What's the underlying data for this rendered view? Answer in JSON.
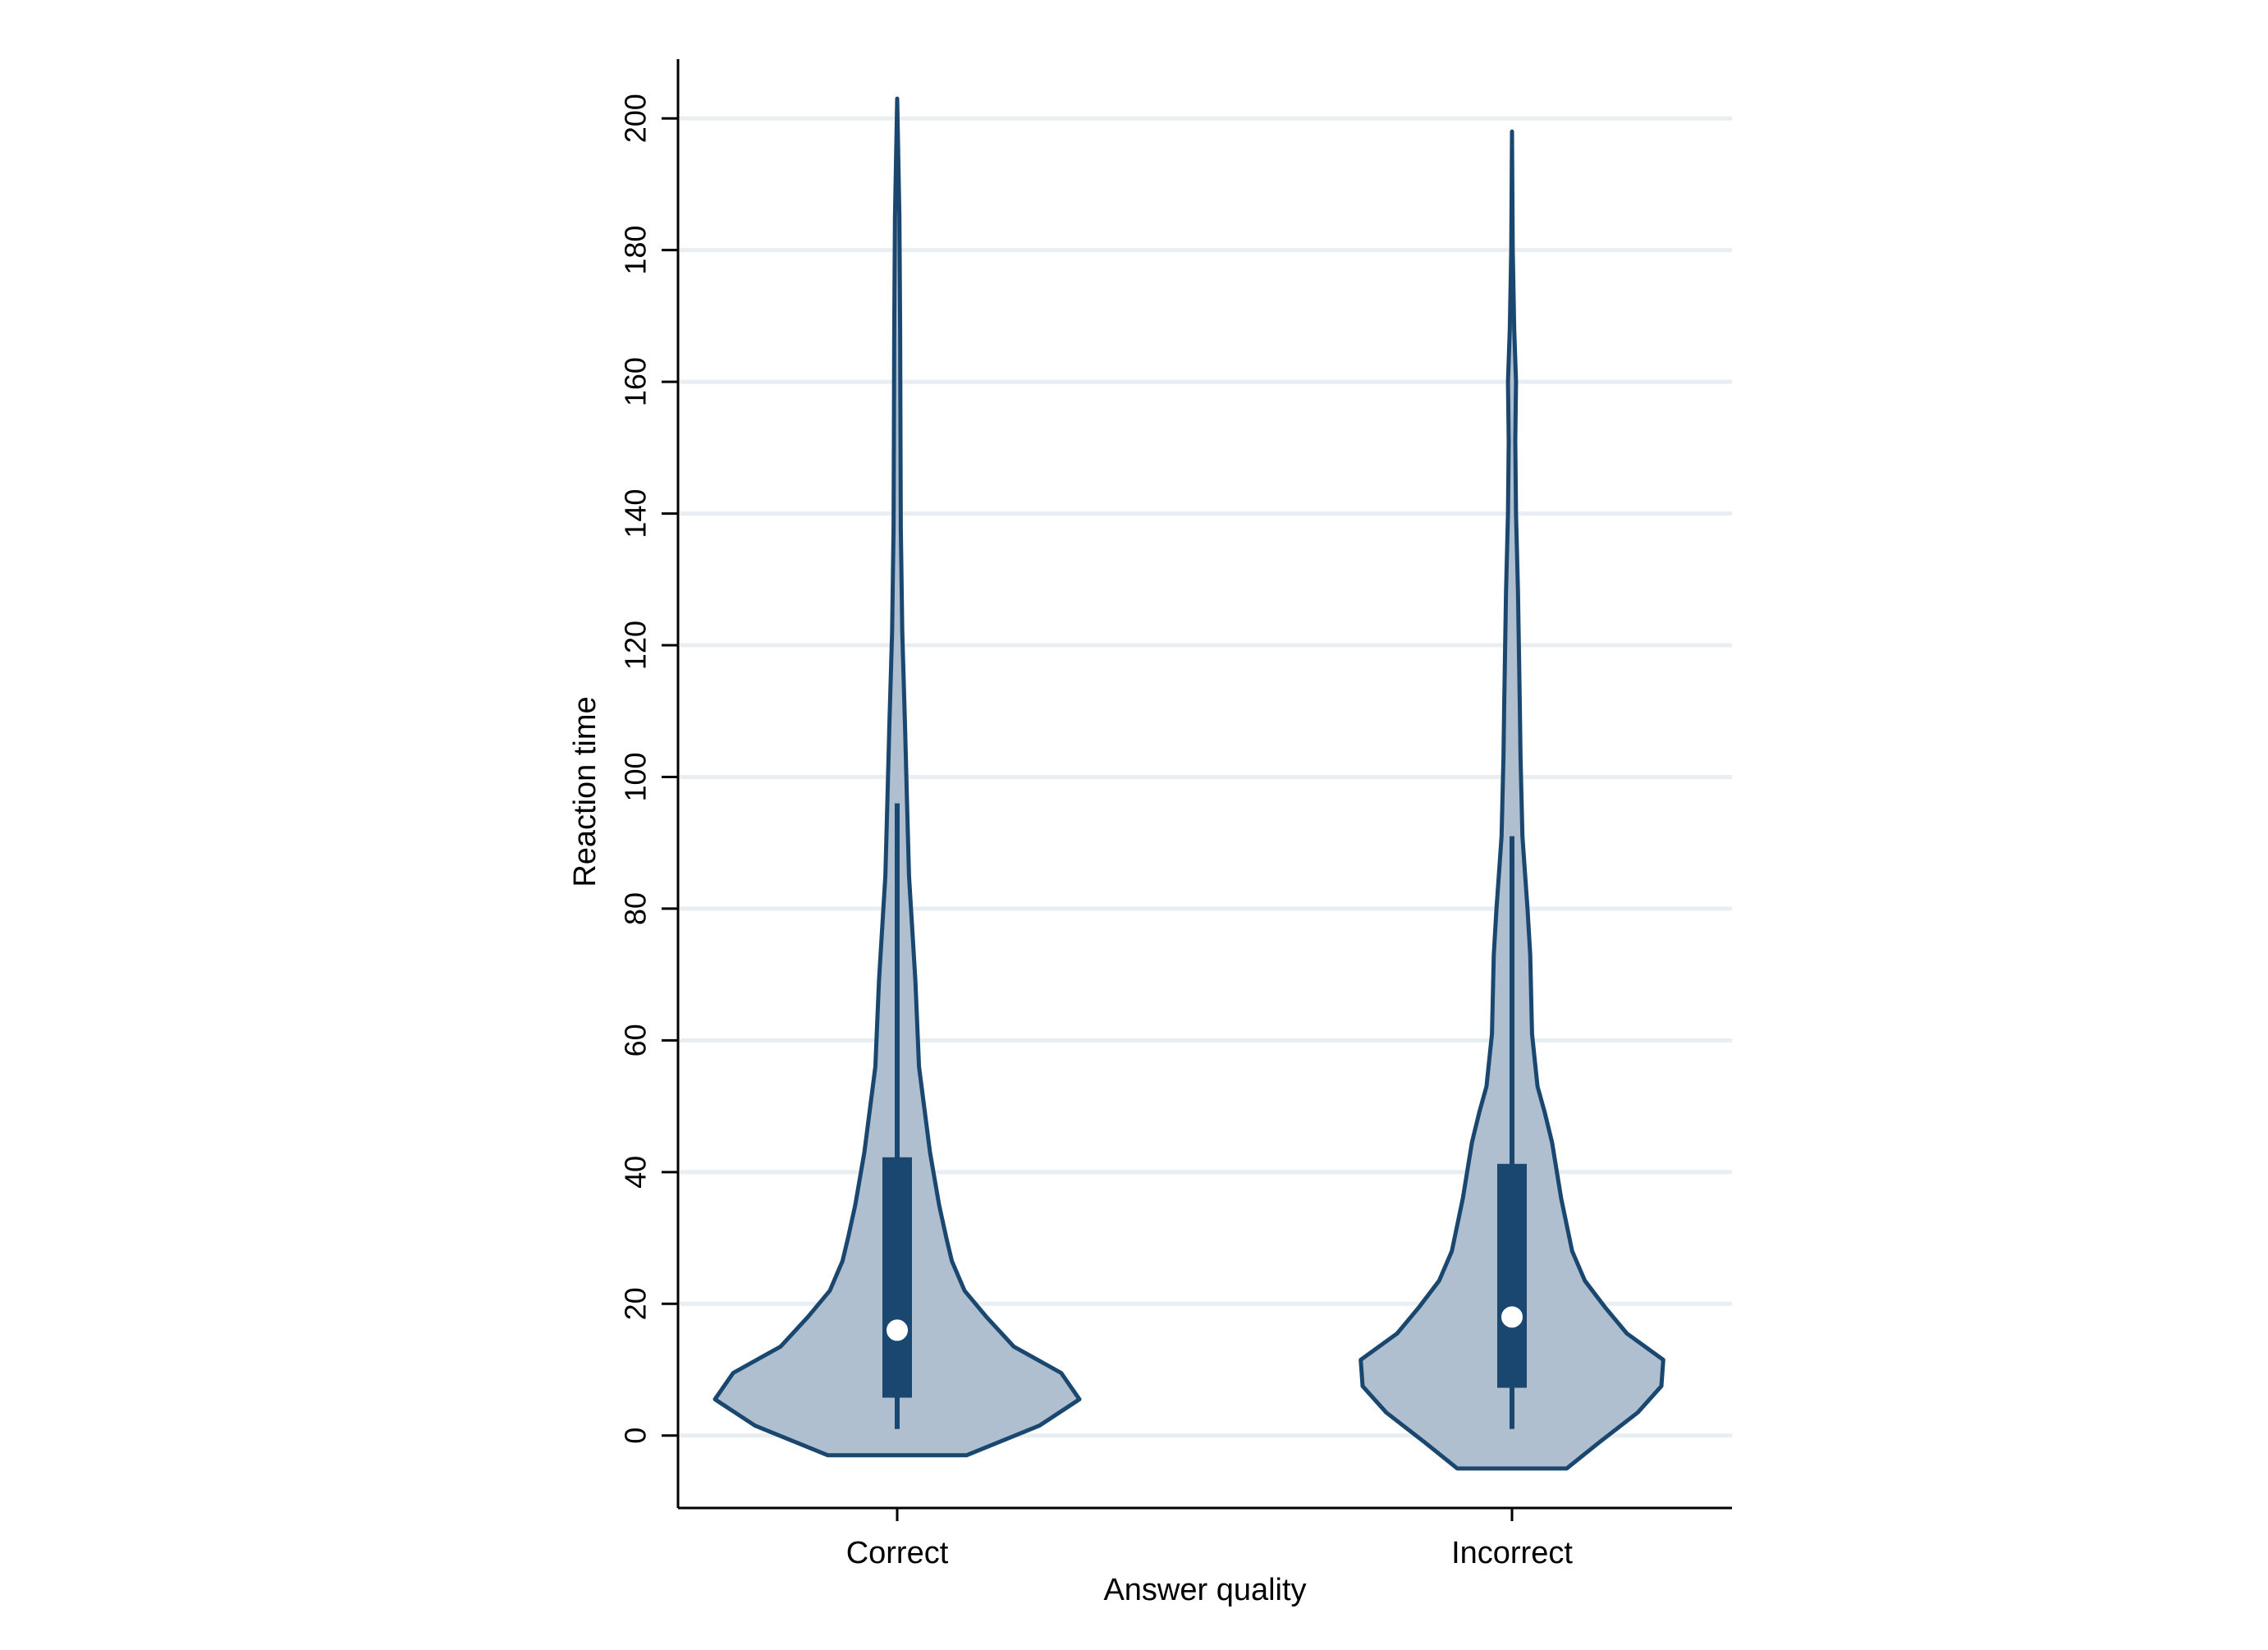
{
  "chart_data": {
    "type": "violin",
    "xlabel": "Answer quality",
    "ylabel": "Reaction time",
    "ylim": [
      -11,
      209
    ],
    "yticks": [
      0,
      20,
      40,
      60,
      80,
      100,
      120,
      140,
      160,
      180,
      200
    ],
    "grid": true,
    "categories": [
      "Correct",
      "Incorrect"
    ],
    "colors": {
      "fill": "#b0bfcf",
      "outline": "#1a476f",
      "grid": "#e8eef1",
      "axis": "#000000",
      "median": "#ffffff"
    },
    "series": [
      {
        "category": "Correct",
        "box": {
          "q1": 6,
          "median": 16,
          "q3": 42,
          "whisker_low": 1,
          "whisker_high": 96
        },
        "density": [
          [
            -3,
            0.38
          ],
          [
            1.5,
            0.78
          ],
          [
            5.5,
            1.0
          ],
          [
            9.5,
            0.9
          ],
          [
            13.5,
            0.64
          ],
          [
            18,
            0.49
          ],
          [
            22,
            0.37
          ],
          [
            26.5,
            0.3
          ],
          [
            30,
            0.27
          ],
          [
            35,
            0.23
          ],
          [
            43,
            0.18
          ],
          [
            56,
            0.12
          ],
          [
            69,
            0.1
          ],
          [
            85,
            0.065
          ],
          [
            97,
            0.053
          ],
          [
            108,
            0.043
          ],
          [
            122,
            0.028
          ],
          [
            138,
            0.02
          ],
          [
            152,
            0.018
          ],
          [
            168,
            0.016
          ],
          [
            185,
            0.012
          ],
          [
            203,
            0.0
          ]
        ]
      },
      {
        "category": "Incorrect",
        "box": {
          "q1": 7.5,
          "median": 18,
          "q3": 41,
          "whisker_low": 1,
          "whisker_high": 91
        },
        "density": [
          [
            -5,
            0.3
          ],
          [
            -1,
            0.48
          ],
          [
            3.5,
            0.69
          ],
          [
            7.5,
            0.82
          ],
          [
            11.5,
            0.83
          ],
          [
            15.5,
            0.63
          ],
          [
            19.5,
            0.51
          ],
          [
            23.5,
            0.4
          ],
          [
            28,
            0.33
          ],
          [
            36,
            0.27
          ],
          [
            44.5,
            0.22
          ],
          [
            49,
            0.18
          ],
          [
            53,
            0.14
          ],
          [
            61,
            0.11
          ],
          [
            73,
            0.1
          ],
          [
            80,
            0.085
          ],
          [
            86,
            0.07
          ],
          [
            91,
            0.057
          ],
          [
            103,
            0.047
          ],
          [
            111,
            0.043
          ],
          [
            128,
            0.033
          ],
          [
            140,
            0.022
          ],
          [
            151,
            0.018
          ],
          [
            160,
            0.022
          ],
          [
            168,
            0.012
          ],
          [
            180,
            0.004
          ],
          [
            198,
            0.0
          ]
        ]
      }
    ]
  }
}
